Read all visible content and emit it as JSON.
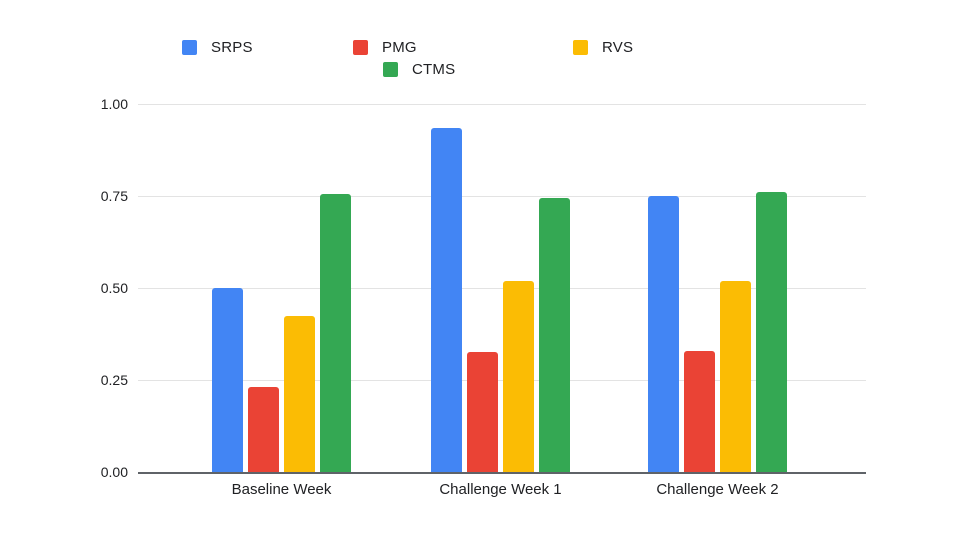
{
  "chart_data": {
    "type": "bar",
    "title": "",
    "categories": [
      "Baseline Week",
      "Challenge Week 1",
      "Challenge Week 2"
    ],
    "series": [
      {
        "name": "SRPS",
        "color": "#4285F4",
        "values": [
          0.5,
          0.935,
          0.75
        ]
      },
      {
        "name": "PMG",
        "color": "#EA4335",
        "values": [
          0.23,
          0.325,
          0.33
        ]
      },
      {
        "name": "RVS",
        "color": "#FBBC04",
        "values": [
          0.425,
          0.52,
          0.52
        ]
      },
      {
        "name": "CTMS",
        "color": "#34A853",
        "values": [
          0.755,
          0.745,
          0.76
        ]
      }
    ],
    "xlabel": "",
    "ylabel": "",
    "ylim": [
      0,
      1.0
    ],
    "yticks": [
      0.0,
      0.25,
      0.5,
      0.75,
      1.0
    ],
    "ytick_labels": [
      "0.00",
      "0.25",
      "0.50",
      "0.75",
      "1.00"
    ],
    "grid": true,
    "legend_position": "top",
    "axis_line_color": "#5f6368",
    "gridline_color": "#e3e3e3",
    "label_color": "#202124",
    "background_color": "#ffffff"
  }
}
